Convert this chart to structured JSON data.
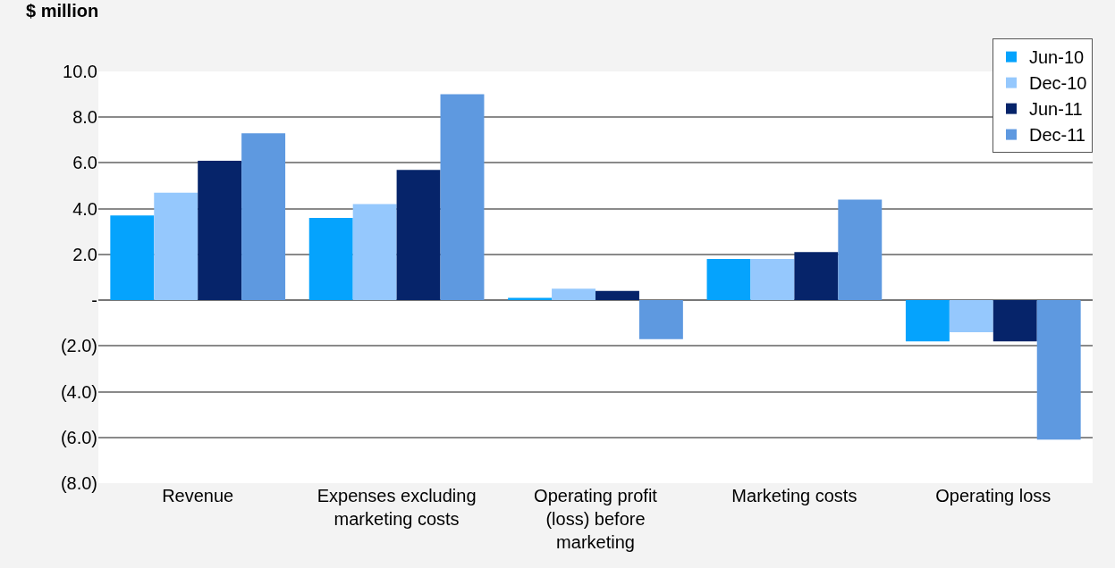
{
  "chart_data": {
    "type": "bar",
    "ylabel": "$ million",
    "categories": [
      "Revenue",
      "Expenses excluding marketing costs",
      "Operating profit (loss) before marketing",
      "Marketing costs",
      "Operating loss"
    ],
    "series": [
      {
        "name": "Jun-10",
        "color": "#05a3fd",
        "values": [
          3.7,
          3.6,
          0.1,
          1.8,
          -1.8
        ]
      },
      {
        "name": "Dec-10",
        "color": "#95c8fd",
        "values": [
          4.7,
          4.2,
          0.5,
          1.8,
          -1.4
        ]
      },
      {
        "name": "Jun-11",
        "color": "#06246a",
        "values": [
          6.1,
          5.7,
          0.4,
          2.1,
          -1.8
        ]
      },
      {
        "name": "Dec-11",
        "color": "#5e99e0",
        "values": [
          7.3,
          9.0,
          -1.7,
          4.4,
          -6.1
        ]
      }
    ],
    "ylim": [
      -8,
      10
    ],
    "yticks": [
      {
        "value": -8,
        "label": "(8.0)"
      },
      {
        "value": -6,
        "label": "(6.0)"
      },
      {
        "value": -4,
        "label": "(4.0)"
      },
      {
        "value": -2,
        "label": "(2.0)"
      },
      {
        "value": 0,
        "label": "-"
      },
      {
        "value": 2,
        "label": "2.0"
      },
      {
        "value": 4,
        "label": "4.0"
      },
      {
        "value": 6,
        "label": "6.0"
      },
      {
        "value": 8,
        "label": "8.0"
      },
      {
        "value": 10,
        "label": "10.0"
      }
    ],
    "grid": "y",
    "legend": "top right"
  }
}
